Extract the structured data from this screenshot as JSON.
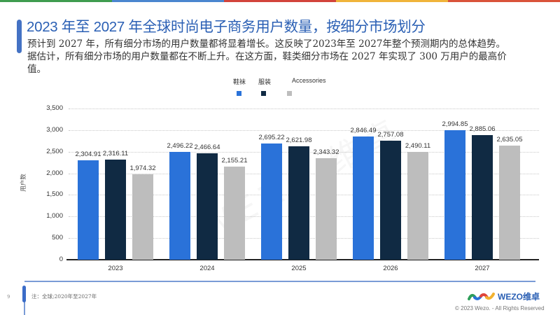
{
  "topbar_colors": [
    "#3f9c4f",
    "#4a86cf",
    "#d2433b",
    "#f0b43a",
    "#d9533a"
  ],
  "header": {
    "title": "2023 年至 2027 年全球时尚电子商务用户数量，按细分市场划分",
    "description": "预计到 2027 年，所有细分市场的用户数量都将显着增长。这反映了2023年至 2027年整个预测期内的总体趋势。据估计，所有细分市场的用户数量都在不断上升。在这方面，鞋类细分市场在 2027 年实现了 300 万用户的最高价值。"
  },
  "legend": [
    {
      "label": "鞋袜",
      "color": "#2a72d9"
    },
    {
      "label": "服装",
      "color": "#102a43"
    },
    {
      "label": "Accessories",
      "color": "#bdbdbd"
    }
  ],
  "chart_data": {
    "type": "bar",
    "title": "2023 年至 2027 年全球时尚电子商务用户数量，按细分市场划分",
    "xlabel": "",
    "ylabel": "用户数",
    "ylim": [
      0,
      3500
    ],
    "yticks": [
      "0",
      "500",
      "1,000",
      "1,500",
      "2,000",
      "2,500",
      "3,000",
      "3,500"
    ],
    "grid": true,
    "legend_position": "top",
    "categories": [
      "2023",
      "2024",
      "2025",
      "2026",
      "2027"
    ],
    "series": [
      {
        "name": "鞋袜",
        "color": "#2a72d9",
        "values": [
          2304.91,
          2496.22,
          2695.22,
          2846.49,
          2994.85
        ],
        "labels": [
          "2,304.91",
          "2,496.22",
          "2,695.22",
          "2,846.49",
          "2,994.85"
        ]
      },
      {
        "name": "服装",
        "color": "#102a43",
        "values": [
          2316.11,
          2466.64,
          2621.98,
          2757.08,
          2885.06
        ],
        "labels": [
          "2,316.11",
          "2,466.64",
          "2,621.98",
          "2,757.08",
          "2,885.06"
        ]
      },
      {
        "name": "Accessories",
        "color": "#bdbdbd",
        "values": [
          1974.32,
          2155.21,
          2343.32,
          2490.11,
          2635.05
        ],
        "labels": [
          "1,974.32",
          "2,155.21",
          "2,343.32",
          "2,490.11",
          "2,635.05"
        ]
      }
    ]
  },
  "watermark": "WEZO 维卓",
  "footer": {
    "page_number": "9",
    "note": "注：全球;2020年至2027年",
    "logo_text": "WEZO维卓",
    "copyright": "© 2023 Wezo. - All Rights Reserved"
  }
}
